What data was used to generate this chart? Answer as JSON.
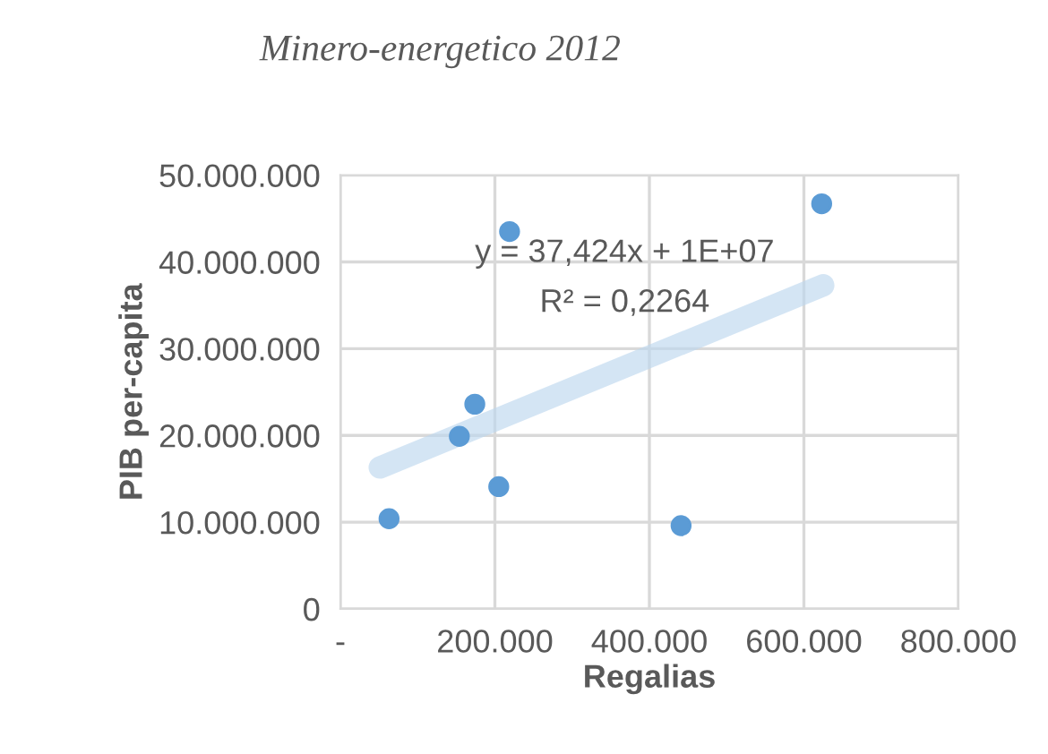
{
  "chart_data": {
    "type": "scatter",
    "title": "Minero-energetico 2012",
    "xlabel": "Regalias",
    "ylabel": "PIB per-capita",
    "annotations": [
      "y = 37,424x + 1E+07",
      "R² = 0,2264"
    ],
    "series": [
      {
        "marker": "circle",
        "color": "#5b9bd5",
        "x": [
          63000,
          154000,
          174000,
          205000,
          219000,
          441000,
          623000
        ],
        "values": [
          10400000,
          19900000,
          23600000,
          14100000,
          43500000,
          9600000,
          46700000
        ]
      },
      {
        "type": "line",
        "marker": "none",
        "color": "#bdd7ee",
        "x": [
          51000,
          625000
        ],
        "values": [
          16300000,
          37300000
        ]
      }
    ],
    "xlim": [
      0,
      800000
    ],
    "ylim": [
      0,
      50000000
    ],
    "xticks": [
      {
        "value": 0,
        "label": "-"
      },
      {
        "value": 200000,
        "label": "200.000"
      },
      {
        "value": 400000,
        "label": "400.000"
      },
      {
        "value": 600000,
        "label": "600.000"
      },
      {
        "value": 800000,
        "label": "800.000"
      }
    ],
    "yticks": [
      0,
      {
        "value": 10000000,
        "label": "10.000.000"
      },
      {
        "value": 20000000,
        "label": "20.000.000"
      },
      {
        "value": 30000000,
        "label": "30.000.000"
      },
      {
        "value": 40000000,
        "label": "40.000.000"
      },
      {
        "value": 50000000,
        "label": "50.000.000"
      }
    ],
    "grid": true,
    "legend": false
  }
}
